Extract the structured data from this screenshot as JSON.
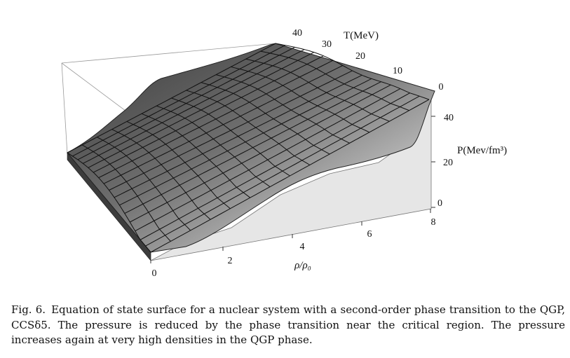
{
  "figure": {
    "axes": {
      "rho": {
        "label": "ρ/ρ₀",
        "ticks": [
          "0",
          "2",
          "4",
          "6",
          "8"
        ]
      },
      "temperature": {
        "label": "T(MeV)",
        "ticks": [
          "40",
          "30",
          "20",
          "10",
          "0"
        ]
      },
      "pressure": {
        "label": "P(Mev/fm³)",
        "ticks": [
          "40",
          "20",
          "0"
        ]
      }
    },
    "surface_color": "#4a4a4a",
    "wall_color": "#e6e6e6"
  },
  "caption": {
    "label": "Fig. 6.",
    "text": "Equation of state surface for a nuclear system with a second-order phase transition to the QGP, CCSδ5. The pressure is reduced by the phase transition near the critical region. The pressure increases again at very high densities in the QGP phase."
  }
}
